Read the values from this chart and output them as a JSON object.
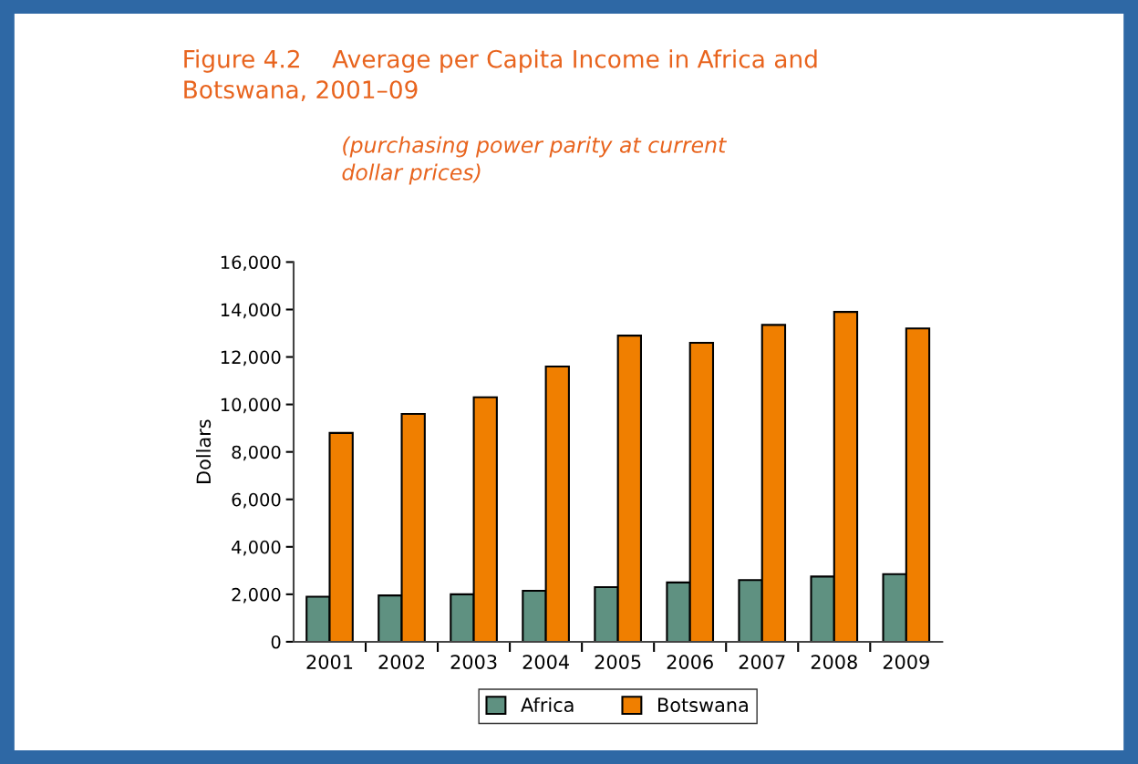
{
  "chart_data": {
    "type": "bar",
    "title": "Figure 4.2    Average per Capita Income in Africa and\nBotswana, 2001–09",
    "subtitle": "(purchasing power parity at current\ndollar prices)",
    "ylabel": "Dollars",
    "categories": [
      "2001",
      "2002",
      "2003",
      "2004",
      "2005",
      "2006",
      "2007",
      "2008",
      "2009"
    ],
    "series": [
      {
        "name": "Africa",
        "color": "#5f9181",
        "values": [
          1900,
          1950,
          2000,
          2150,
          2300,
          2500,
          2600,
          2750,
          2850
        ]
      },
      {
        "name": "Botswana",
        "color": "#f07f00",
        "values": [
          8800,
          9600,
          10300,
          11600,
          12900,
          12600,
          13350,
          13900,
          13200
        ]
      }
    ],
    "ylim": [
      0,
      16000
    ],
    "yticks": [
      {
        "value": 0,
        "label": "0"
      },
      {
        "value": 2000,
        "label": "2,000"
      },
      {
        "value": 4000,
        "label": "4,000"
      },
      {
        "value": 6000,
        "label": "6,000"
      },
      {
        "value": 8000,
        "label": "8,000"
      },
      {
        "value": 10000,
        "label": "10,000"
      },
      {
        "value": 12000,
        "label": "12,000"
      },
      {
        "value": 14000,
        "label": "14,000"
      },
      {
        "value": 16000,
        "label": "16,000"
      }
    ],
    "grid": false,
    "legend": "bottom"
  }
}
